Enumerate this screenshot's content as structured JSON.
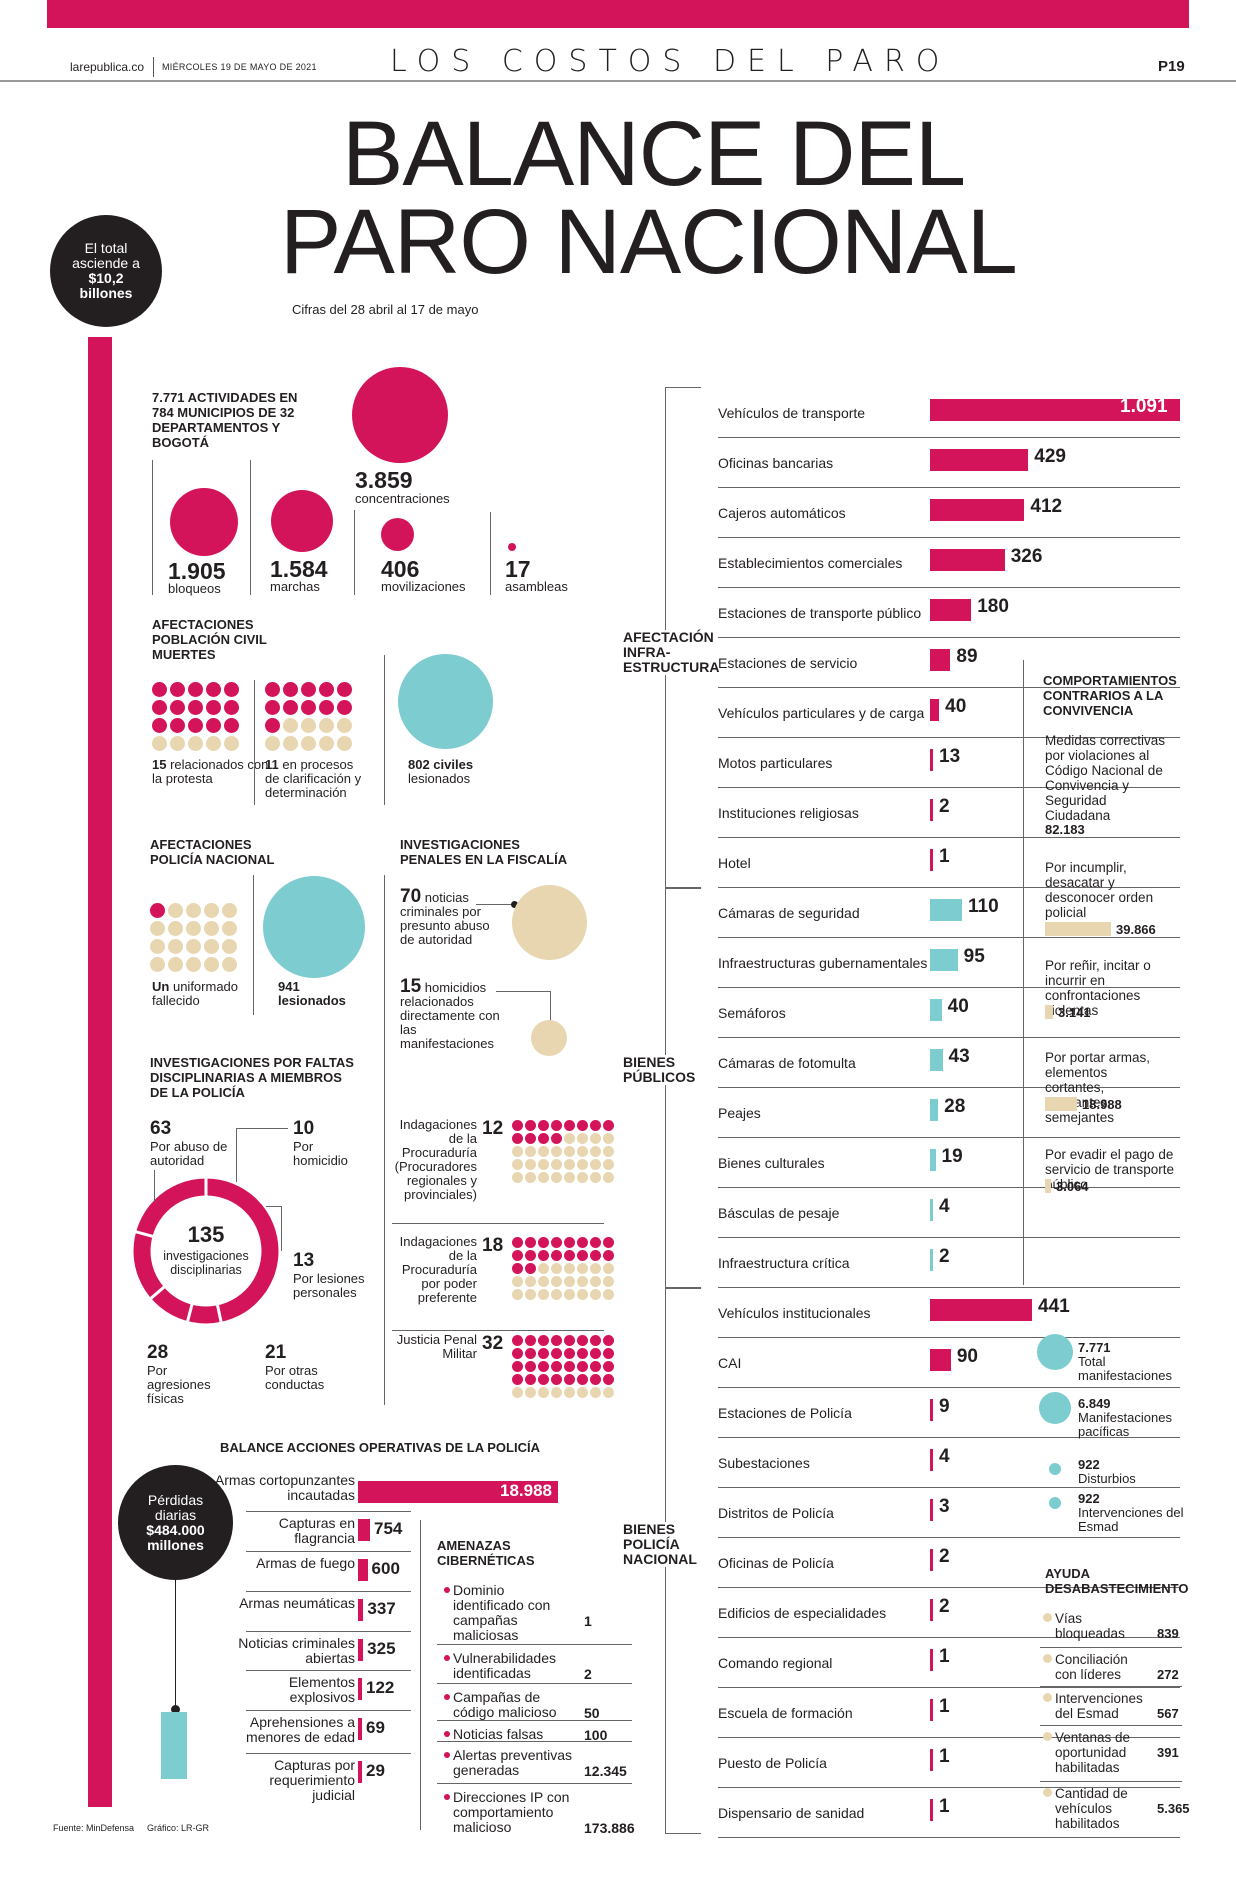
{
  "header": {
    "site": "larepublica.co",
    "date": "MIÉRCOLES 19 DE MAYO DE 2021",
    "section": "LOS COSTOS DEL PARO",
    "page": "P19"
  },
  "title": {
    "line1": "BALANCE DEL",
    "line2": "PARO NACIONAL",
    "subtitle": "Cifras del 28 abril al 17 de mayo"
  },
  "total": {
    "l1": "El total",
    "l2": "asciende a",
    "l3": "$10,2",
    "l4": "billones"
  },
  "activities": {
    "head": "7.771 ACTIVIDADES EN 784 MUNICIPIOS DE 32 DEPARTAMENTOS Y BOGOTÁ",
    "items": [
      {
        "n": "3.859",
        "l": "concentraciones"
      },
      {
        "n": "1.905",
        "l": "bloqueos"
      },
      {
        "n": "1.584",
        "l": "marchas"
      },
      {
        "n": "406",
        "l": "movilizaciones"
      },
      {
        "n": "17",
        "l": "asambleas"
      }
    ]
  },
  "civil": {
    "head": "AFECTACIONES POBLACIÓN CIVIL MUERTES",
    "a_n": "15",
    "a_l": "relacionados con la protesta",
    "b_n": "11",
    "b_l": "en procesos de clarificación y determinación",
    "c_n": "802 civiles",
    "c_l": "lesionados"
  },
  "police": {
    "head": "AFECTACIONES POLICÍA NACIONAL",
    "a_b": "Un",
    "a_l": "uniformado fallecido",
    "b_n": "941",
    "b_l": "lesionados"
  },
  "fiscalia": {
    "head": "INVESTIGACIONES PENALES EN LA FISCALÍA",
    "a_n": "70",
    "a_l1": "noticias",
    "a_l2": "criminales por presunto abuso de autoridad",
    "b_n": "15",
    "b_l1": "homicidios",
    "b_l2": "relacionados directamente con las manifestaciones"
  },
  "disc": {
    "head": "INVESTIGACIONES POR FALTAS DISCIPLINARIAS A MIEMBROS DE LA POLICÍA",
    "total": "135",
    "total_l": "investigaciones disciplinarias",
    "items": [
      {
        "n": "63",
        "l": "Por abuso de autoridad"
      },
      {
        "n": "10",
        "l": "Por homicidio"
      },
      {
        "n": "13",
        "l": "Por lesiones personales"
      },
      {
        "n": "21",
        "l": "Por otras conductas"
      },
      {
        "n": "28",
        "l": "Por agresiones físicas"
      }
    ]
  },
  "procu": [
    {
      "l": "Indagaciones de la Procuraduría (Procuradores regionales y provinciales)",
      "n": "12"
    },
    {
      "l": "Indagaciones de la Procuraduría por poder preferente",
      "n": "18"
    },
    {
      "l": "Justicia Penal Militar",
      "n": "32"
    }
  ],
  "ops": {
    "head": "BALANCE ACCIONES OPERATIVAS DE LA POLICÍA",
    "items": [
      {
        "l": "Armas cortopunzantes incautadas",
        "n": "18.988",
        "v": 18988
      },
      {
        "l": "Capturas en flagrancia",
        "n": "754",
        "v": 754
      },
      {
        "l": "Armas de fuego",
        "n": "600",
        "v": 600
      },
      {
        "l": "Armas neumáticas",
        "n": "337",
        "v": 337
      },
      {
        "l": "Noticias criminales abiertas",
        "n": "325",
        "v": 325
      },
      {
        "l": "Elementos explosivos",
        "n": "122",
        "v": 122
      },
      {
        "l": "Aprehensiones a menores de edad",
        "n": "69",
        "v": 69
      },
      {
        "l": "Capturas por requerimiento judicial",
        "n": "29",
        "v": 29
      }
    ]
  },
  "losses": {
    "l1": "Pérdidas",
    "l2": "diarias",
    "l3": "$484.000",
    "l4": "millones"
  },
  "cyber": {
    "head": "AMENAZAS CIBERNÉTICAS",
    "items": [
      {
        "l": "Dominio identificado con campañas maliciosas",
        "n": "1"
      },
      {
        "l": "Vulnerabilidades identificadas",
        "n": "2"
      },
      {
        "l": "Campañas de código malicioso",
        "n": "50"
      },
      {
        "l": "Noticias falsas",
        "n": "100"
      },
      {
        "l": "Alertas preventivas generadas",
        "n": "12.345"
      },
      {
        "l": "Direcciones IP con comportamiento malicioso",
        "n": "173.886"
      }
    ]
  },
  "infra": {
    "cat": "AFECTACIÓN INFRA-ESTRUCTURA",
    "items": [
      {
        "l": "Vehículos de transporte",
        "n": "1.091",
        "v": 1091
      },
      {
        "l": "Oficinas bancarias",
        "n": "429",
        "v": 429
      },
      {
        "l": "Cajeros automáticos",
        "n": "412",
        "v": 412
      },
      {
        "l": "Establecimientos comerciales",
        "n": "326",
        "v": 326
      },
      {
        "l": "Estaciones de transporte público",
        "n": "180",
        "v": 180
      },
      {
        "l": "Estaciones de servicio",
        "n": "89",
        "v": 89
      },
      {
        "l": "Vehículos particulares y de carga",
        "n": "40",
        "v": 40
      },
      {
        "l": "Motos particulares",
        "n": "13",
        "v": 13
      },
      {
        "l": "Instituciones religiosas",
        "n": "2",
        "v": 2
      },
      {
        "l": "Hotel",
        "n": "1",
        "v": 1
      }
    ]
  },
  "public": {
    "cat": "BIENES PÚBLICOS",
    "items": [
      {
        "l": "Cámaras de seguridad",
        "n": "110",
        "v": 110
      },
      {
        "l": "Infraestructuras gubernamentales",
        "n": "95",
        "v": 95
      },
      {
        "l": "Semáforos",
        "n": "40",
        "v": 40
      },
      {
        "l": "Cámaras de fotomulta",
        "n": "43",
        "v": 43
      },
      {
        "l": "Peajes",
        "n": "28",
        "v": 28
      },
      {
        "l": "Bienes culturales",
        "n": "19",
        "v": 19
      },
      {
        "l": "Básculas de pesaje",
        "n": "4",
        "v": 4
      },
      {
        "l": "Infraestructura crítica",
        "n": "2",
        "v": 2
      }
    ]
  },
  "policeprop": {
    "cat": "BIENES POLICÍA NACIONAL",
    "items": [
      {
        "l": "Vehículos institucionales",
        "n": "441",
        "v": 441
      },
      {
        "l": "CAI",
        "n": "90",
        "v": 90
      },
      {
        "l": "Estaciones de Policía",
        "n": "9",
        "v": 9
      },
      {
        "l": "Subestaciones",
        "n": "4",
        "v": 4
      },
      {
        "l": "Distritos de Policía",
        "n": "3",
        "v": 3
      },
      {
        "l": "Oficinas de Policía",
        "n": "2",
        "v": 2
      },
      {
        "l": "Edificios de especialidades",
        "n": "2",
        "v": 2
      },
      {
        "l": "Comando regional",
        "n": "1",
        "v": 1
      },
      {
        "l": "Escuela de formación",
        "n": "1",
        "v": 1
      },
      {
        "l": "Puesto de Policía",
        "n": "1",
        "v": 1
      },
      {
        "l": "Dispensario de sanidad",
        "n": "1",
        "v": 1
      }
    ]
  },
  "conv": {
    "head": "COMPORTAMIENTOS CONTRARIOS A LA CONVIVENCIA",
    "intro": "Medidas correctivas por violaciones al Código Nacional de Convivencia y Seguridad Ciudadana",
    "intro_n": "82.183",
    "items": [
      {
        "l": "Por incumplir, desacatar y desconocer orden policial",
        "n": "39.866"
      },
      {
        "l": "Por reñir, incitar o incurrir en confrontaciones violentas",
        "n": "3.141"
      },
      {
        "l": "Por portar armas, elementos cortantes, punzantes, semejantes",
        "n": "18.988"
      },
      {
        "l": "Por evadir el pago de servicio de transporte público",
        "n": "3.064"
      }
    ]
  },
  "manif": [
    {
      "n": "7.771",
      "l": "Total manifestaciones"
    },
    {
      "n": "6.849",
      "l": "Manifestaciones pacíficas"
    },
    {
      "n": "922",
      "l": "Disturbios"
    },
    {
      "n": "922",
      "l": "Intervenciones del Esmad"
    }
  ],
  "supply": {
    "head": "AYUDA DESABASTECIMIENTO",
    "items": [
      {
        "l": "Vías bloqueadas",
        "n": "839"
      },
      {
        "l": "Conciliación con líderes",
        "n": "272"
      },
      {
        "l": "Intervenciones del Esmad",
        "n": "567"
      },
      {
        "l": "Ventanas de oportunidad habilitadas",
        "n": "391"
      },
      {
        "l": "Cantidad de vehículos habilitados",
        "n": "5.365"
      }
    ]
  },
  "footer": {
    "source": "Fuente: MinDefensa",
    "graphic": "Gráfico: LR-GR"
  },
  "colors": {
    "magenta": "#d4145a",
    "cyan": "#7cccd0",
    "beige": "#e8d6b0",
    "dark": "#231f20"
  }
}
